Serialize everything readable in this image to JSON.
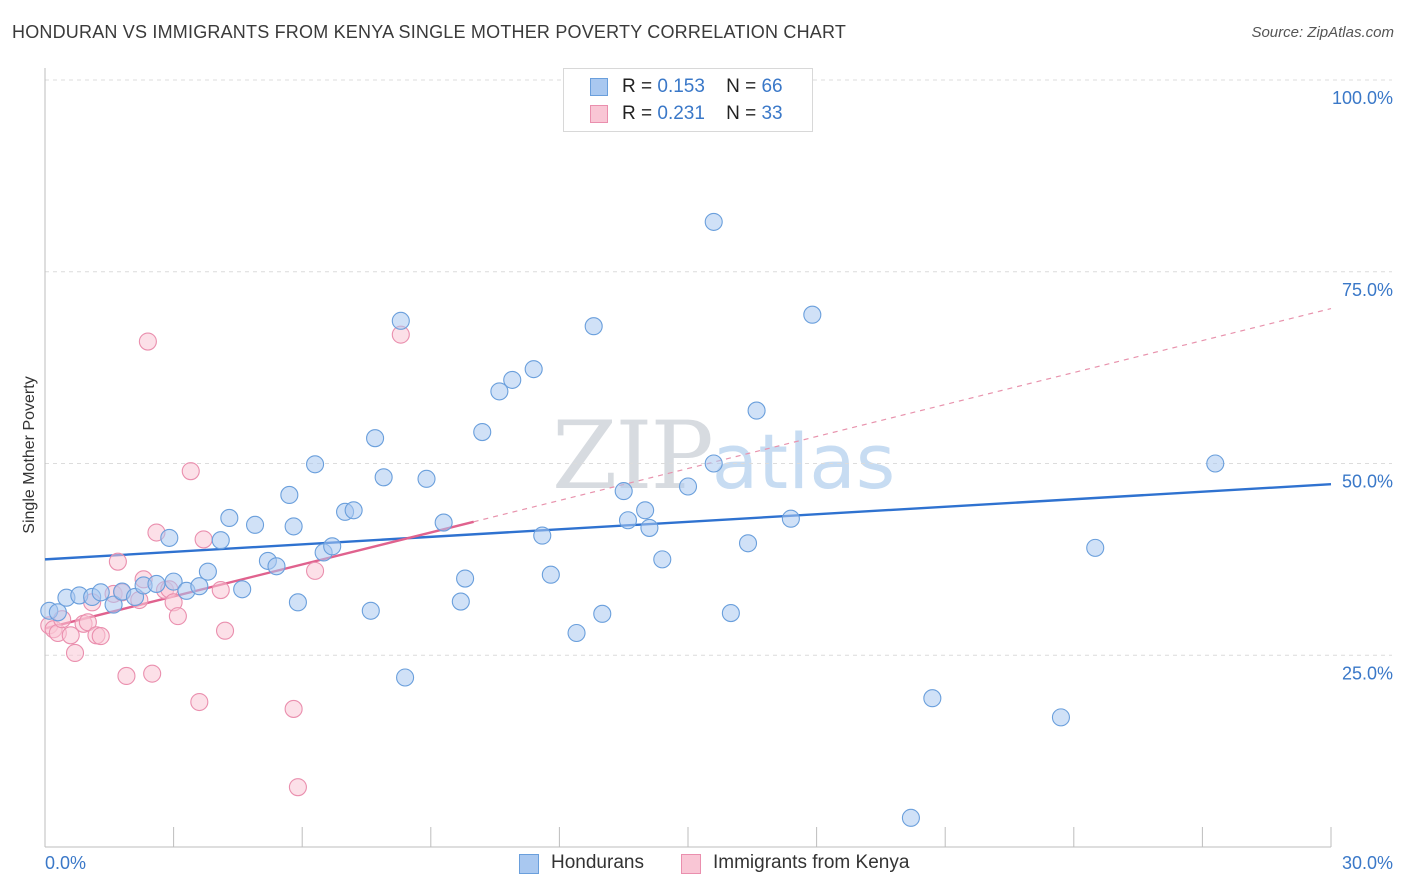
{
  "title": "HONDURAN VS IMMIGRANTS FROM KENYA SINGLE MOTHER POVERTY CORRELATION CHART",
  "source": "Source: ZipAtlas.com",
  "watermark": {
    "zip": "ZIP",
    "atlas": "atlas"
  },
  "legend": {
    "rows": [
      {
        "r_label": "R =",
        "r_value": "0.153",
        "n_label": "N =",
        "n_value": "66",
        "color": "#a9c8f0",
        "border": "#6a9fdc"
      },
      {
        "r_label": "R =",
        "r_value": "0.231",
        "n_label": "N =",
        "n_value": "33",
        "color": "#f9c6d5",
        "border": "#ea8fae"
      }
    ]
  },
  "bottom_legend": [
    {
      "label": "Hondurans",
      "color": "#a9c8f0",
      "border": "#6a9fdc"
    },
    {
      "label": "Immigrants from Kenya",
      "color": "#f9c6d5",
      "border": "#ea8fae"
    }
  ],
  "chart_data": {
    "type": "scatter",
    "title": "HONDURAN VS IMMIGRANTS FROM KENYA SINGLE MOTHER POVERTY CORRELATION CHART",
    "xlabel": "",
    "ylabel": "Single Mother Poverty",
    "xlim": [
      0,
      30
    ],
    "ylim": [
      0,
      100
    ],
    "x_tick_labels": [
      "0.0%",
      "30.0%"
    ],
    "y_tick_labels": [
      "100.0%",
      "75.0%",
      "50.0%",
      "25.0%"
    ],
    "y_ticks": [
      100,
      75,
      50,
      25
    ],
    "grid": true,
    "legend_placement": "top-center",
    "series": [
      {
        "name": "Hondurans",
        "color": "#6a9fdc",
        "fill": "#a9c8f0",
        "trend": {
          "x0": 0,
          "y0": 37.5,
          "x1": 30,
          "y1": 47.3
        },
        "points": [
          [
            0.1,
            30.8
          ],
          [
            0.3,
            30.6
          ],
          [
            0.5,
            32.5
          ],
          [
            0.8,
            32.8
          ],
          [
            1.1,
            32.6
          ],
          [
            1.3,
            33.2
          ],
          [
            1.6,
            31.6
          ],
          [
            1.8,
            33.3
          ],
          [
            2.1,
            32.6
          ],
          [
            2.3,
            34.1
          ],
          [
            2.6,
            34.3
          ],
          [
            2.9,
            40.3
          ],
          [
            3.0,
            34.6
          ],
          [
            3.3,
            33.4
          ],
          [
            3.6,
            34.0
          ],
          [
            3.8,
            35.9
          ],
          [
            4.1,
            40.0
          ],
          [
            4.3,
            42.9
          ],
          [
            4.6,
            33.6
          ],
          [
            4.9,
            42.0
          ],
          [
            5.2,
            37.3
          ],
          [
            5.4,
            36.6
          ],
          [
            5.7,
            45.9
          ],
          [
            5.8,
            41.8
          ],
          [
            5.9,
            31.9
          ],
          [
            6.3,
            49.9
          ],
          [
            6.5,
            38.4
          ],
          [
            6.7,
            39.2
          ],
          [
            7.0,
            43.7
          ],
          [
            7.2,
            43.9
          ],
          [
            7.6,
            30.8
          ],
          [
            7.7,
            53.3
          ],
          [
            7.9,
            48.2
          ],
          [
            8.3,
            68.6
          ],
          [
            8.4,
            22.1
          ],
          [
            8.9,
            48.0
          ],
          [
            9.3,
            42.3
          ],
          [
            9.7,
            32.0
          ],
          [
            9.8,
            35.0
          ],
          [
            10.2,
            54.1
          ],
          [
            10.6,
            59.4
          ],
          [
            10.9,
            60.9
          ],
          [
            11.4,
            62.3
          ],
          [
            11.6,
            40.6
          ],
          [
            11.8,
            35.5
          ],
          [
            12.4,
            27.9
          ],
          [
            12.8,
            67.9
          ],
          [
            13.0,
            30.4
          ],
          [
            13.5,
            46.4
          ],
          [
            13.6,
            42.6
          ],
          [
            14.0,
            43.9
          ],
          [
            14.1,
            41.6
          ],
          [
            14.4,
            37.5
          ],
          [
            15.0,
            47.0
          ],
          [
            15.6,
            81.5
          ],
          [
            15.6,
            50.0
          ],
          [
            16.0,
            30.5
          ],
          [
            16.4,
            39.6
          ],
          [
            16.6,
            56.9
          ],
          [
            17.4,
            42.8
          ],
          [
            17.9,
            69.4
          ],
          [
            20.2,
            3.8
          ],
          [
            20.7,
            19.4
          ],
          [
            23.7,
            16.9
          ],
          [
            24.5,
            39.0
          ],
          [
            27.3,
            50.0
          ]
        ]
      },
      {
        "name": "Immigrants from Kenya",
        "color": "#ea8fae",
        "fill": "#f9c6d5",
        "trend": {
          "x0": 0,
          "y0": 28.5,
          "x1": 10,
          "y1": 42.4
        },
        "trend_extension": {
          "x0": 10,
          "y0": 42.4,
          "x1": 30,
          "y1": 70.2
        },
        "points": [
          [
            0.1,
            28.9
          ],
          [
            0.2,
            28.4
          ],
          [
            0.3,
            27.9
          ],
          [
            0.4,
            29.7
          ],
          [
            0.6,
            27.6
          ],
          [
            0.7,
            25.3
          ],
          [
            0.9,
            29.1
          ],
          [
            1.0,
            29.3
          ],
          [
            1.1,
            31.9
          ],
          [
            1.2,
            27.6
          ],
          [
            1.3,
            27.5
          ],
          [
            1.6,
            33.0
          ],
          [
            1.7,
            37.2
          ],
          [
            1.8,
            33.2
          ],
          [
            1.9,
            22.3
          ],
          [
            2.2,
            32.2
          ],
          [
            2.3,
            34.9
          ],
          [
            2.4,
            65.9
          ],
          [
            2.5,
            22.6
          ],
          [
            2.6,
            41.0
          ],
          [
            2.8,
            33.5
          ],
          [
            2.9,
            33.6
          ],
          [
            3.0,
            31.9
          ],
          [
            3.1,
            30.1
          ],
          [
            3.4,
            49.0
          ],
          [
            3.6,
            18.9
          ],
          [
            3.7,
            40.1
          ],
          [
            4.1,
            33.5
          ],
          [
            4.2,
            28.2
          ],
          [
            5.8,
            18.0
          ],
          [
            5.9,
            7.8
          ],
          [
            6.3,
            36.0
          ],
          [
            8.3,
            66.8
          ]
        ]
      }
    ]
  }
}
